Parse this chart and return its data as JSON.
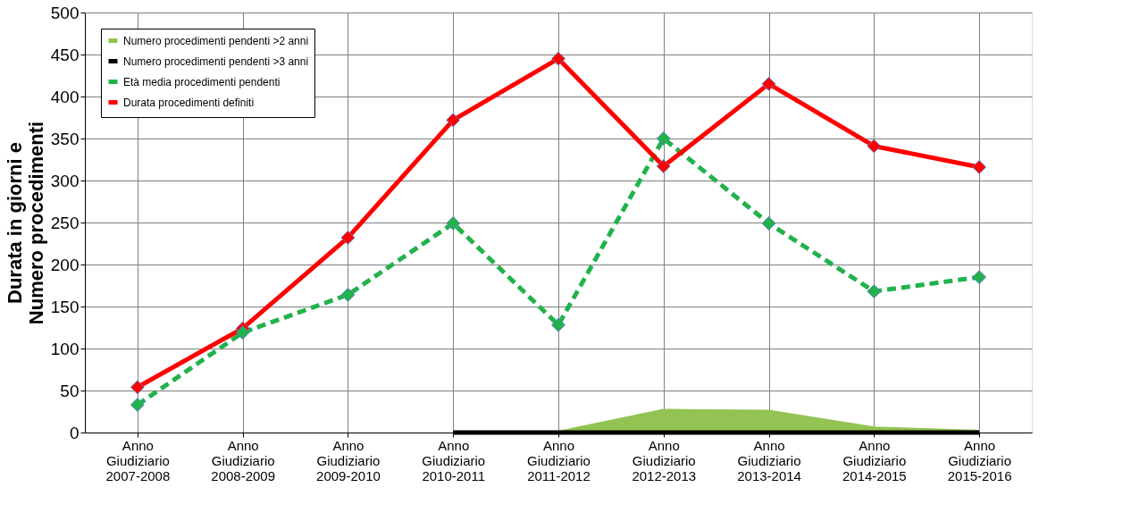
{
  "chart_data": {
    "type": "line",
    "ylabel": "Durata in giorni e Numero procedimenti",
    "categories": [
      "Anno Giudiziario 2007-2008",
      "Anno Giudiziario 2008-2009",
      "Anno Giudiziario 2009-2010",
      "Anno Giudiziario 2010-2011",
      "Anno Giudiziario 2011-2012",
      "Anno Giudiziario 2012-2013",
      "Anno Giudiziario 2013-2014",
      "Anno Giudiziario 2014-2015",
      "Anno Giudiziario 2015-2016"
    ],
    "series": [
      {
        "name": "Numero procedimenti pendenti >2 anni",
        "type": "area",
        "color": "#92c353",
        "values": [
          null,
          null,
          null,
          0,
          0,
          26,
          25,
          5,
          1
        ]
      },
      {
        "name": "Numero procedimenti pendenti >3 anni",
        "color": "#000000",
        "values": [
          null,
          null,
          null,
          0,
          0,
          0,
          0,
          0,
          0
        ]
      },
      {
        "name": "Età media procedimenti pendenti",
        "color": "#22b24c",
        "line_style": "dashed",
        "marker": "diamond",
        "values": [
          33,
          119,
          164,
          249,
          128,
          350,
          249,
          168,
          185
        ]
      },
      {
        "name": "Durata procedimenti definiti",
        "color": "#ff0000",
        "marker": "diamond",
        "values": [
          54,
          124,
          232,
          372,
          445,
          317,
          415,
          341,
          316
        ]
      }
    ],
    "ylim": [
      0,
      500
    ],
    "yticks": [
      0,
      50,
      100,
      150,
      200,
      250,
      300,
      350,
      400,
      450,
      500
    ],
    "grid": true,
    "legend": "top left"
  }
}
